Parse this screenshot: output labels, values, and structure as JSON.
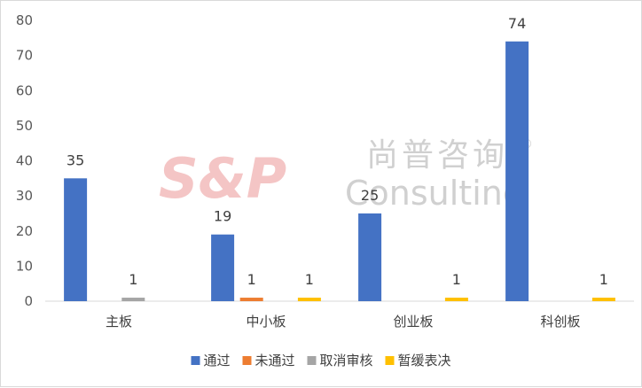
{
  "watermark": {
    "logo": "S&P",
    "cn": "尚普咨询",
    "en": "Consulting",
    "reg": "®"
  },
  "chart_data": {
    "type": "bar",
    "categories": [
      "主板",
      "中小板",
      "创业板",
      "科创板"
    ],
    "series": [
      {
        "name": "通过",
        "color": "#4472c4",
        "values": [
          35,
          19,
          25,
          74
        ]
      },
      {
        "name": "未通过",
        "color": "#ed7d31",
        "values": [
          null,
          1,
          null,
          null
        ]
      },
      {
        "name": "取消审核",
        "color": "#a5a5a5",
        "values": [
          1,
          null,
          null,
          null
        ]
      },
      {
        "name": "暂缓表决",
        "color": "#ffc000",
        "values": [
          null,
          1,
          1,
          1
        ]
      }
    ],
    "ylim": [
      0,
      80
    ],
    "yticks": [
      0,
      10,
      20,
      30,
      40,
      50,
      60,
      70,
      80
    ],
    "grid": false,
    "legend": "bottom",
    "data_labels": true,
    "title": "",
    "xlabel": "",
    "ylabel": ""
  }
}
